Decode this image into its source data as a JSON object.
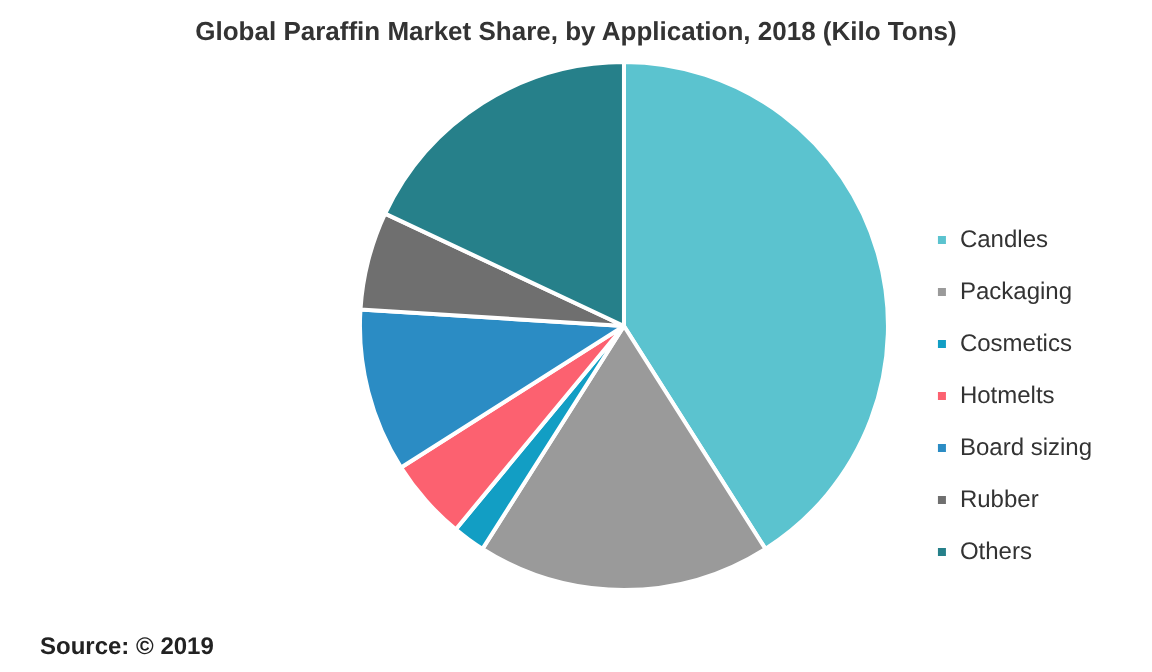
{
  "chart_data": {
    "type": "pie",
    "title": "Global Paraffin Market Share, by Application, 2018 (Kilo Tons)",
    "categories": [
      "Candles",
      "Packaging",
      "Cosmetics",
      "Hotmelts",
      "Board sizing",
      "Rubber",
      "Others"
    ],
    "values": [
      41,
      18,
      2,
      5,
      10,
      6,
      18
    ],
    "colors": [
      "#5bc3cf",
      "#9a9a9a",
      "#129ec4",
      "#fc6170",
      "#2b8cc4",
      "#6f6f6f",
      "#26808a"
    ],
    "legend": "right",
    "annotations": [
      "Source: © 2019"
    ]
  }
}
